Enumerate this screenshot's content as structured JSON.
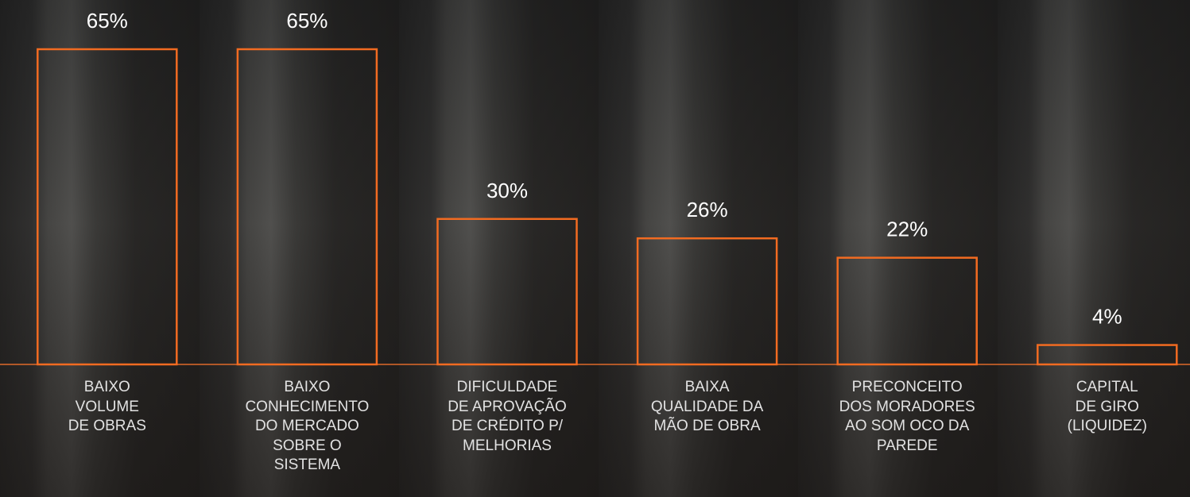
{
  "chart_data": {
    "type": "bar",
    "categories": [
      "BAIXO\nVOLUME\nDE OBRAS",
      "BAIXO\nCONHECIMENTO\nDO MERCADO\nSOBRE O\nSISTEMA",
      "DIFICULDADE\nDE APROVAÇÃO\nDE CRÉDITO P/\nMELHORIAS",
      "BAIXA\nQUALIDADE DA\nMÃO DE OBRA",
      "PRECONCEITO\nDOS MORADORES\nAO SOM OCO DA\nPAREDE",
      "CAPITAL\nDE GIRO\n(LIQUIDEZ)"
    ],
    "values": [
      65,
      65,
      30,
      26,
      22,
      4
    ],
    "value_labels": [
      "65%",
      "65%",
      "30%",
      "26%",
      "22%",
      "4%"
    ],
    "color": "#f26b21",
    "ylim": [
      0,
      65
    ]
  }
}
